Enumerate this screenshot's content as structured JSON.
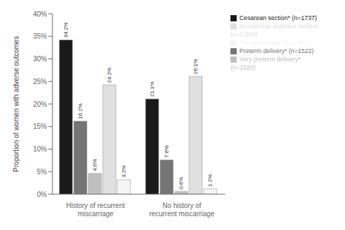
{
  "chart_data": {
    "type": "bar",
    "categories": [
      "History of recurrent miscarriage",
      "No history of recurrent miscarriage"
    ],
    "series": [
      {
        "name": "Cesarean section* (n=1737)",
        "color": "#1a1a1a",
        "values": [
          34.2,
          21.1
        ],
        "value_labels": [
          "34.2%",
          "21.1%"
        ]
      },
      {
        "name": "Preterm delivery* (n=1522)",
        "color": "#757575",
        "values": [
          16.2,
          7.6
        ],
        "value_labels": [
          "16.2%",
          "7.6%"
        ]
      },
      {
        "name": "Very preterm delivery* (n=1520)",
        "color": "#c0c0c0",
        "values": [
          4.6,
          0.6
        ],
        "value_labels": [
          "4.6%",
          "0.6%"
        ]
      },
      {
        "name": "Gestational diabetes mellitus (n=1,592)",
        "color": "#e0e0e0",
        "values": [
          24.2,
          26.1
        ],
        "value_labels": [
          "24.2%",
          "26.1%"
        ]
      },
      {
        "name": "Pre-eclampsia* (n=1,652)",
        "color": "#f5f5f5",
        "values": [
          3.2,
          1.2
        ],
        "value_labels": [
          "3.2%",
          "1.2%"
        ]
      }
    ],
    "ylabel": "Proportion of women with adverse outcomes",
    "ylim": [
      0,
      40
    ],
    "yticks": [
      {
        "value": 0,
        "label": "0%"
      },
      {
        "value": 5,
        "label": "5%"
      },
      {
        "value": 10,
        "label": "10%"
      },
      {
        "value": 15,
        "label": "15%"
      },
      {
        "value": 20,
        "label": "20%"
      },
      {
        "value": 25,
        "label": "25%"
      },
      {
        "value": 30,
        "label": "30%"
      },
      {
        "value": 35,
        "label": "35%"
      },
      {
        "value": 40,
        "label": "40%"
      }
    ],
    "data_labels": true,
    "legend": "upper right",
    "grid": false
  }
}
